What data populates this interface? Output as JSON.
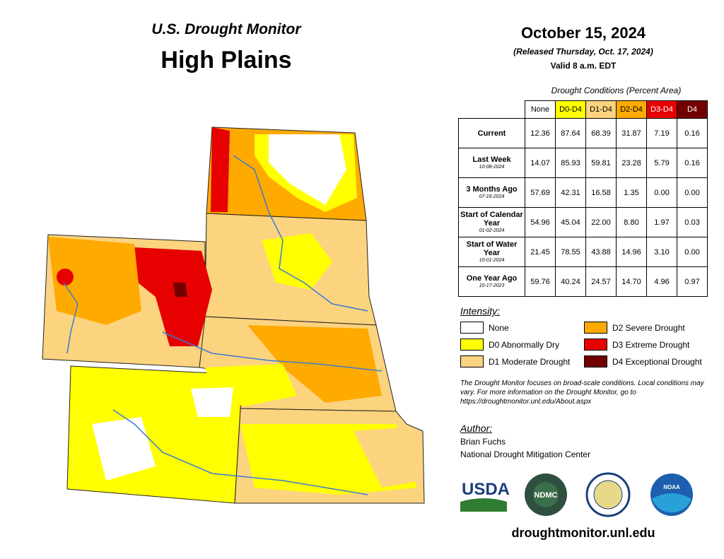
{
  "header": {
    "subtitle": "U.S. Drought Monitor",
    "title": "High Plains",
    "date": "October 15, 2024",
    "released": "(Released Thursday, Oct. 17, 2024)",
    "valid": "Valid 8 a.m. EDT"
  },
  "table": {
    "caption": "Drought Conditions (Percent Area)",
    "columns": [
      "None",
      "D0-D4",
      "D1-D4",
      "D2-D4",
      "D3-D4",
      "D4"
    ],
    "rows": [
      {
        "label": "Current",
        "values": [
          "12.36",
          "87.64",
          "68.39",
          "31.87",
          "7.19",
          "0.16"
        ]
      },
      {
        "label": "Last Week",
        "date": "10-08-2024",
        "values": [
          "14.07",
          "85.93",
          "59.81",
          "23.28",
          "5.79",
          "0.16"
        ]
      },
      {
        "label": "3 Months Ago",
        "date": "07-16-2024",
        "values": [
          "57.69",
          "42.31",
          "16.58",
          "1.35",
          "0.00",
          "0.00"
        ]
      },
      {
        "label": "Start of Calendar Year",
        "date": "01-02-2024",
        "values": [
          "54.96",
          "45.04",
          "22.00",
          "8.80",
          "1.97",
          "0.03"
        ]
      },
      {
        "label": "Start of Water Year",
        "date": "10-01-2024",
        "values": [
          "21.45",
          "78.55",
          "43.88",
          "14.96",
          "3.10",
          "0.00"
        ]
      },
      {
        "label": "One Year Ago",
        "date": "10-17-2023",
        "values": [
          "59.76",
          "40.24",
          "24.57",
          "14.70",
          "4.96",
          "0.97"
        ]
      }
    ]
  },
  "legend": {
    "title": "Intensity:",
    "items": [
      {
        "label": "None",
        "color": "#ffffff"
      },
      {
        "label": "D0 Abnormally Dry",
        "color": "#ffff00"
      },
      {
        "label": "D1 Moderate Drought",
        "color": "#fcd37f"
      },
      {
        "label": "D2 Severe Drought",
        "color": "#ffaa00"
      },
      {
        "label": "D3 Extreme Drought",
        "color": "#e60000"
      },
      {
        "label": "D4 Exceptional Drought",
        "color": "#730000"
      }
    ]
  },
  "note": "The Drought Monitor focuses on broad-scale conditions. Local conditions may vary. For more information on the Drought Monitor, go to https://droughtmonitor.unl.edu/About.aspx",
  "author": {
    "title": "Author:",
    "name": "Brian Fuchs",
    "org": "National Drought Mitigation Center"
  },
  "logos": {
    "usda": "USDA",
    "ndmc": "NDMC",
    "noaa": "NOAA"
  },
  "url": "droughtmonitor.unl.edu"
}
